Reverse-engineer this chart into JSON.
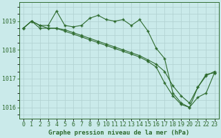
{
  "title": "Graphe pression niveau de la mer (hPa)",
  "bg_color": "#caeaea",
  "grid_color": "#b0d0d0",
  "line_color": "#2d6a2d",
  "x_labels": [
    "0",
    "1",
    "2",
    "3",
    "4",
    "5",
    "6",
    "7",
    "8",
    "9",
    "10",
    "11",
    "12",
    "13",
    "14",
    "15",
    "16",
    "17",
    "18",
    "19",
    "20",
    "21",
    "22",
    "23"
  ],
  "x_values": [
    0,
    1,
    2,
    3,
    4,
    5,
    6,
    7,
    8,
    9,
    10,
    11,
    12,
    13,
    14,
    15,
    16,
    17,
    18,
    19,
    20,
    21,
    22,
    23
  ],
  "series1": [
    1018.75,
    1019.0,
    1018.85,
    1018.85,
    1019.35,
    1018.85,
    1018.8,
    1018.85,
    1019.1,
    1019.2,
    1019.05,
    1019.0,
    1019.05,
    1018.85,
    1019.05,
    1018.65,
    1018.05,
    1017.7,
    1016.5,
    1016.15,
    1016.0,
    1016.7,
    1017.15,
    1017.2
  ],
  "series2": [
    1018.75,
    1019.0,
    1018.85,
    1018.75,
    1018.75,
    1018.7,
    1018.6,
    1018.5,
    1018.4,
    1018.3,
    1018.2,
    1018.1,
    1018.0,
    1017.9,
    1017.8,
    1017.65,
    1017.5,
    1017.25,
    1016.75,
    1016.4,
    1016.15,
    1016.7,
    1017.1,
    1017.25
  ],
  "series3": [
    1018.75,
    1019.0,
    1018.75,
    1018.75,
    1018.75,
    1018.65,
    1018.55,
    1018.45,
    1018.35,
    1018.25,
    1018.15,
    1018.05,
    1017.95,
    1017.85,
    1017.75,
    1017.6,
    1017.4,
    1016.85,
    1016.4,
    1016.1,
    1016.0,
    1016.35,
    1016.5,
    1017.2
  ],
  "ylim_min": 1015.6,
  "ylim_max": 1019.65,
  "yticks": [
    1016,
    1017,
    1018,
    1019
  ],
  "label_fontsize": 6.0,
  "title_fontsize": 6.5,
  "marker_size": 3.5
}
